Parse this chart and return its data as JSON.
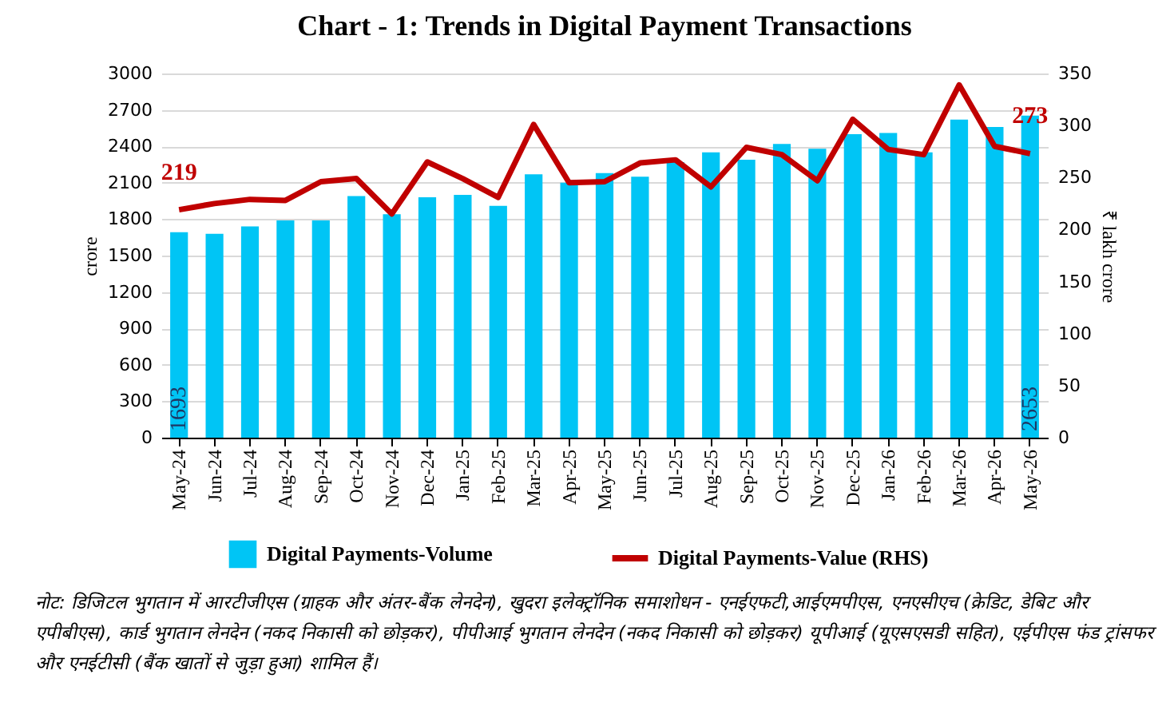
{
  "chart_data": {
    "type": "bar",
    "title": "Chart - 1: Trends in Digital Payment Transactions",
    "ylabel": "crore",
    "y2label": "₹ lakh crore",
    "categories": [
      "May-24",
      "Jun-24",
      "Jul-24",
      "Aug-24",
      "Sep-24",
      "Oct-24",
      "Nov-24",
      "Dec-24",
      "Jan-25",
      "Feb-25",
      "Mar-25",
      "Apr-25",
      "May-25",
      "Jun-25",
      "Jul-25",
      "Aug-25",
      "Sep-25",
      "Oct-25",
      "Nov-25",
      "Dec-25",
      "Jan-26",
      "Feb-26",
      "Mar-26",
      "Apr-26",
      "May-26"
    ],
    "series": [
      {
        "name": "Digital Payments-Volume",
        "color": "#00c5f5",
        "values": [
          1693,
          1680,
          1740,
          1790,
          1790,
          1990,
          1840,
          1980,
          2000,
          1910,
          2170,
          2100,
          2180,
          2150,
          2270,
          2350,
          2290,
          2420,
          2380,
          2500,
          2510,
          2350,
          2620,
          2560,
          2653
        ],
        "value_labels": [
          "1693",
          null,
          null,
          null,
          null,
          null,
          null,
          null,
          null,
          null,
          null,
          null,
          null,
          null,
          null,
          null,
          null,
          null,
          null,
          null,
          null,
          null,
          null,
          null,
          "2653"
        ]
      },
      {
        "name": "Digital Payments-Value (RHS)",
        "type": "line",
        "axis": "y2",
        "color": "#c00000",
        "values": [
          219,
          225,
          229,
          228,
          246,
          249,
          215,
          265,
          249,
          231,
          301,
          245,
          246,
          264,
          267,
          241,
          279,
          272,
          247,
          306,
          277,
          272,
          339,
          280,
          273
        ],
        "value_labels": [
          "219",
          null,
          null,
          null,
          null,
          null,
          null,
          null,
          null,
          null,
          null,
          null,
          null,
          null,
          null,
          null,
          null,
          null,
          null,
          null,
          null,
          null,
          null,
          null,
          "273"
        ]
      }
    ],
    "ylim": [
      0,
      3000
    ],
    "yticks": [
      0,
      300,
      600,
      900,
      1200,
      1500,
      1800,
      2100,
      2400,
      2700,
      3000
    ],
    "y2lim": [
      0,
      350
    ],
    "y2ticks": [
      0,
      50,
      100,
      150,
      200,
      250,
      300,
      350
    ],
    "grid": "y",
    "legend": "bottom",
    "marker": "none",
    "line_style": "solid",
    "annotations": [
      "नोट: डिजिटल भुगतान में आरटीजीएस (ग्राहक और अंतर-बैंक लेनदेन), खुदरा इलेक्ट्रॉनिक समाशोधन - एनईएफटी,आईएमपीएस, एनएसीएच (क्रेडिट, डेबिट और एपीबीएस), कार्ड भुगतान लेनदेन (नकद निकासी को छोड़कर), पीपीआई भुगतान लेनदेन (नकद निकासी को छोड़कर) यूपीआई (यूएसएसडी सहित), एईपीएस फंड ट्रांसफर और एनईटीसी (बैंक खातों से जुड़ा हुआ) शामिल हैं।"
    ]
  }
}
